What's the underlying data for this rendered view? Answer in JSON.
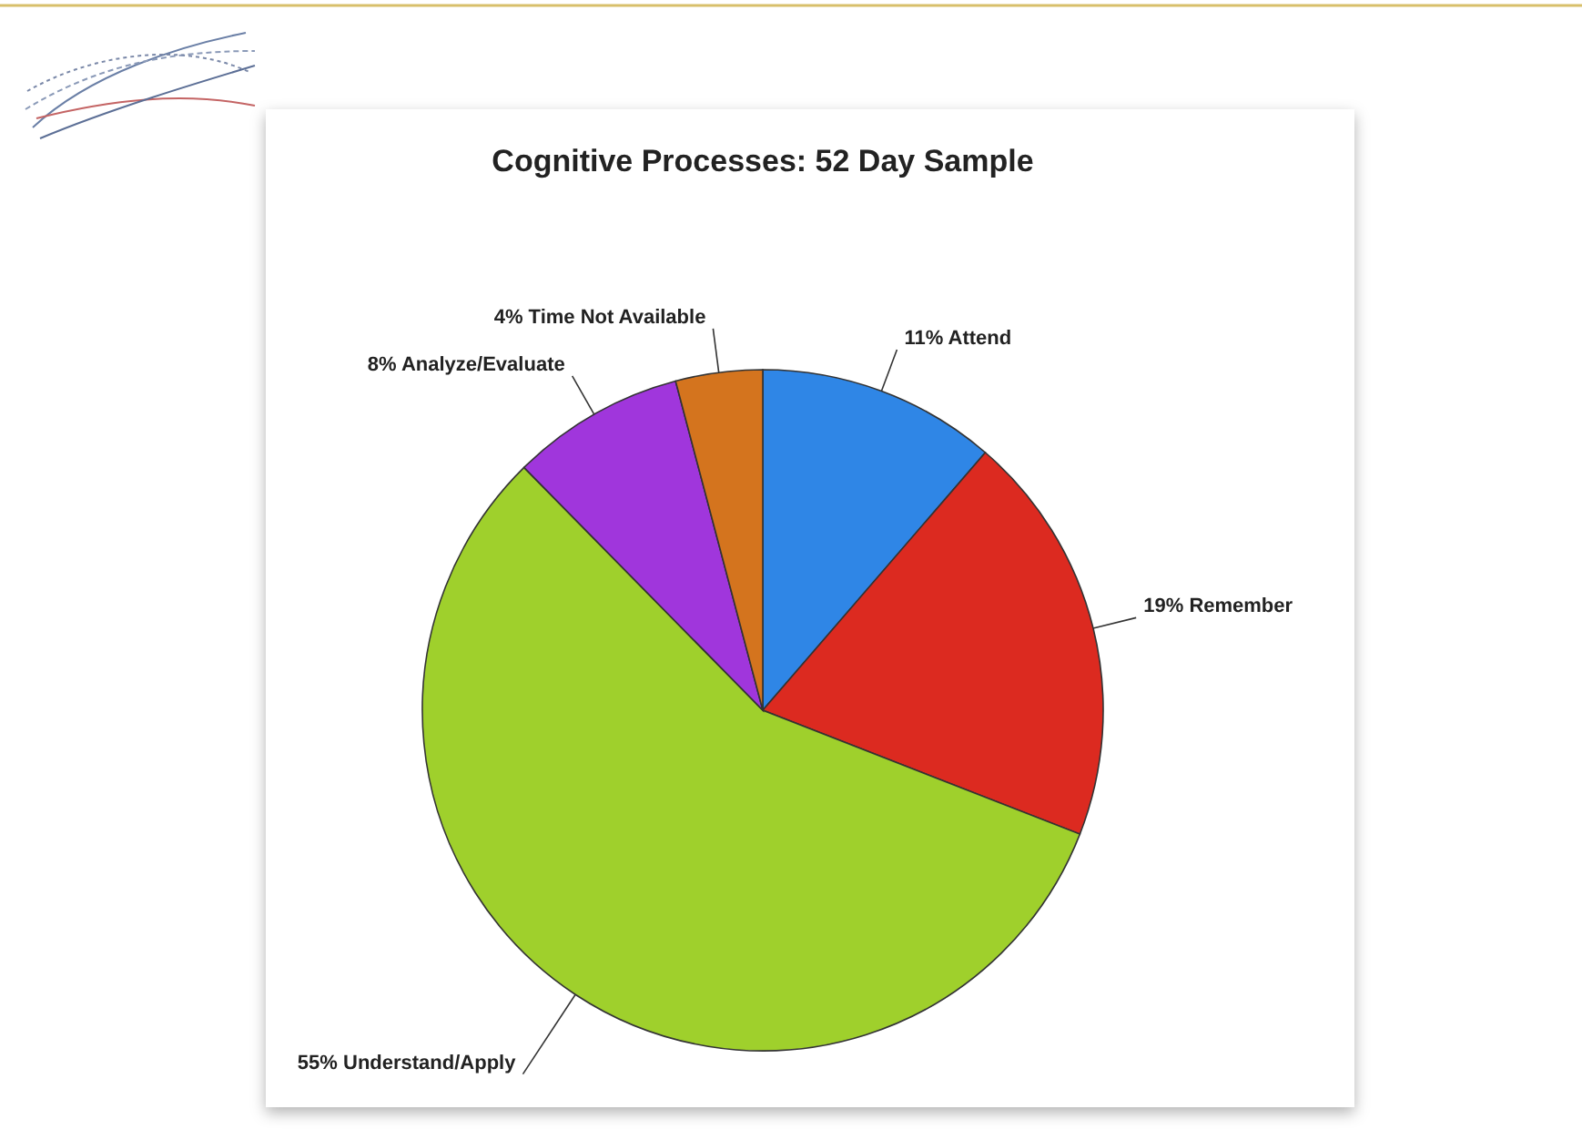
{
  "chart_data": {
    "type": "pie",
    "title": "Cognitive Processes: 52 Day Sample",
    "categories": [
      "Attend",
      "Remember",
      "Understand/Apply",
      "Analyze/Evaluate",
      "Time Not Available"
    ],
    "values": [
      11,
      19,
      55,
      8,
      4
    ],
    "colors": [
      "#2f86e6",
      "#dc2a20",
      "#9fd02c",
      "#a036dc",
      "#d4741e"
    ],
    "value_labels": [
      "11%",
      "19%",
      "55%",
      "8%",
      "4%"
    ]
  }
}
